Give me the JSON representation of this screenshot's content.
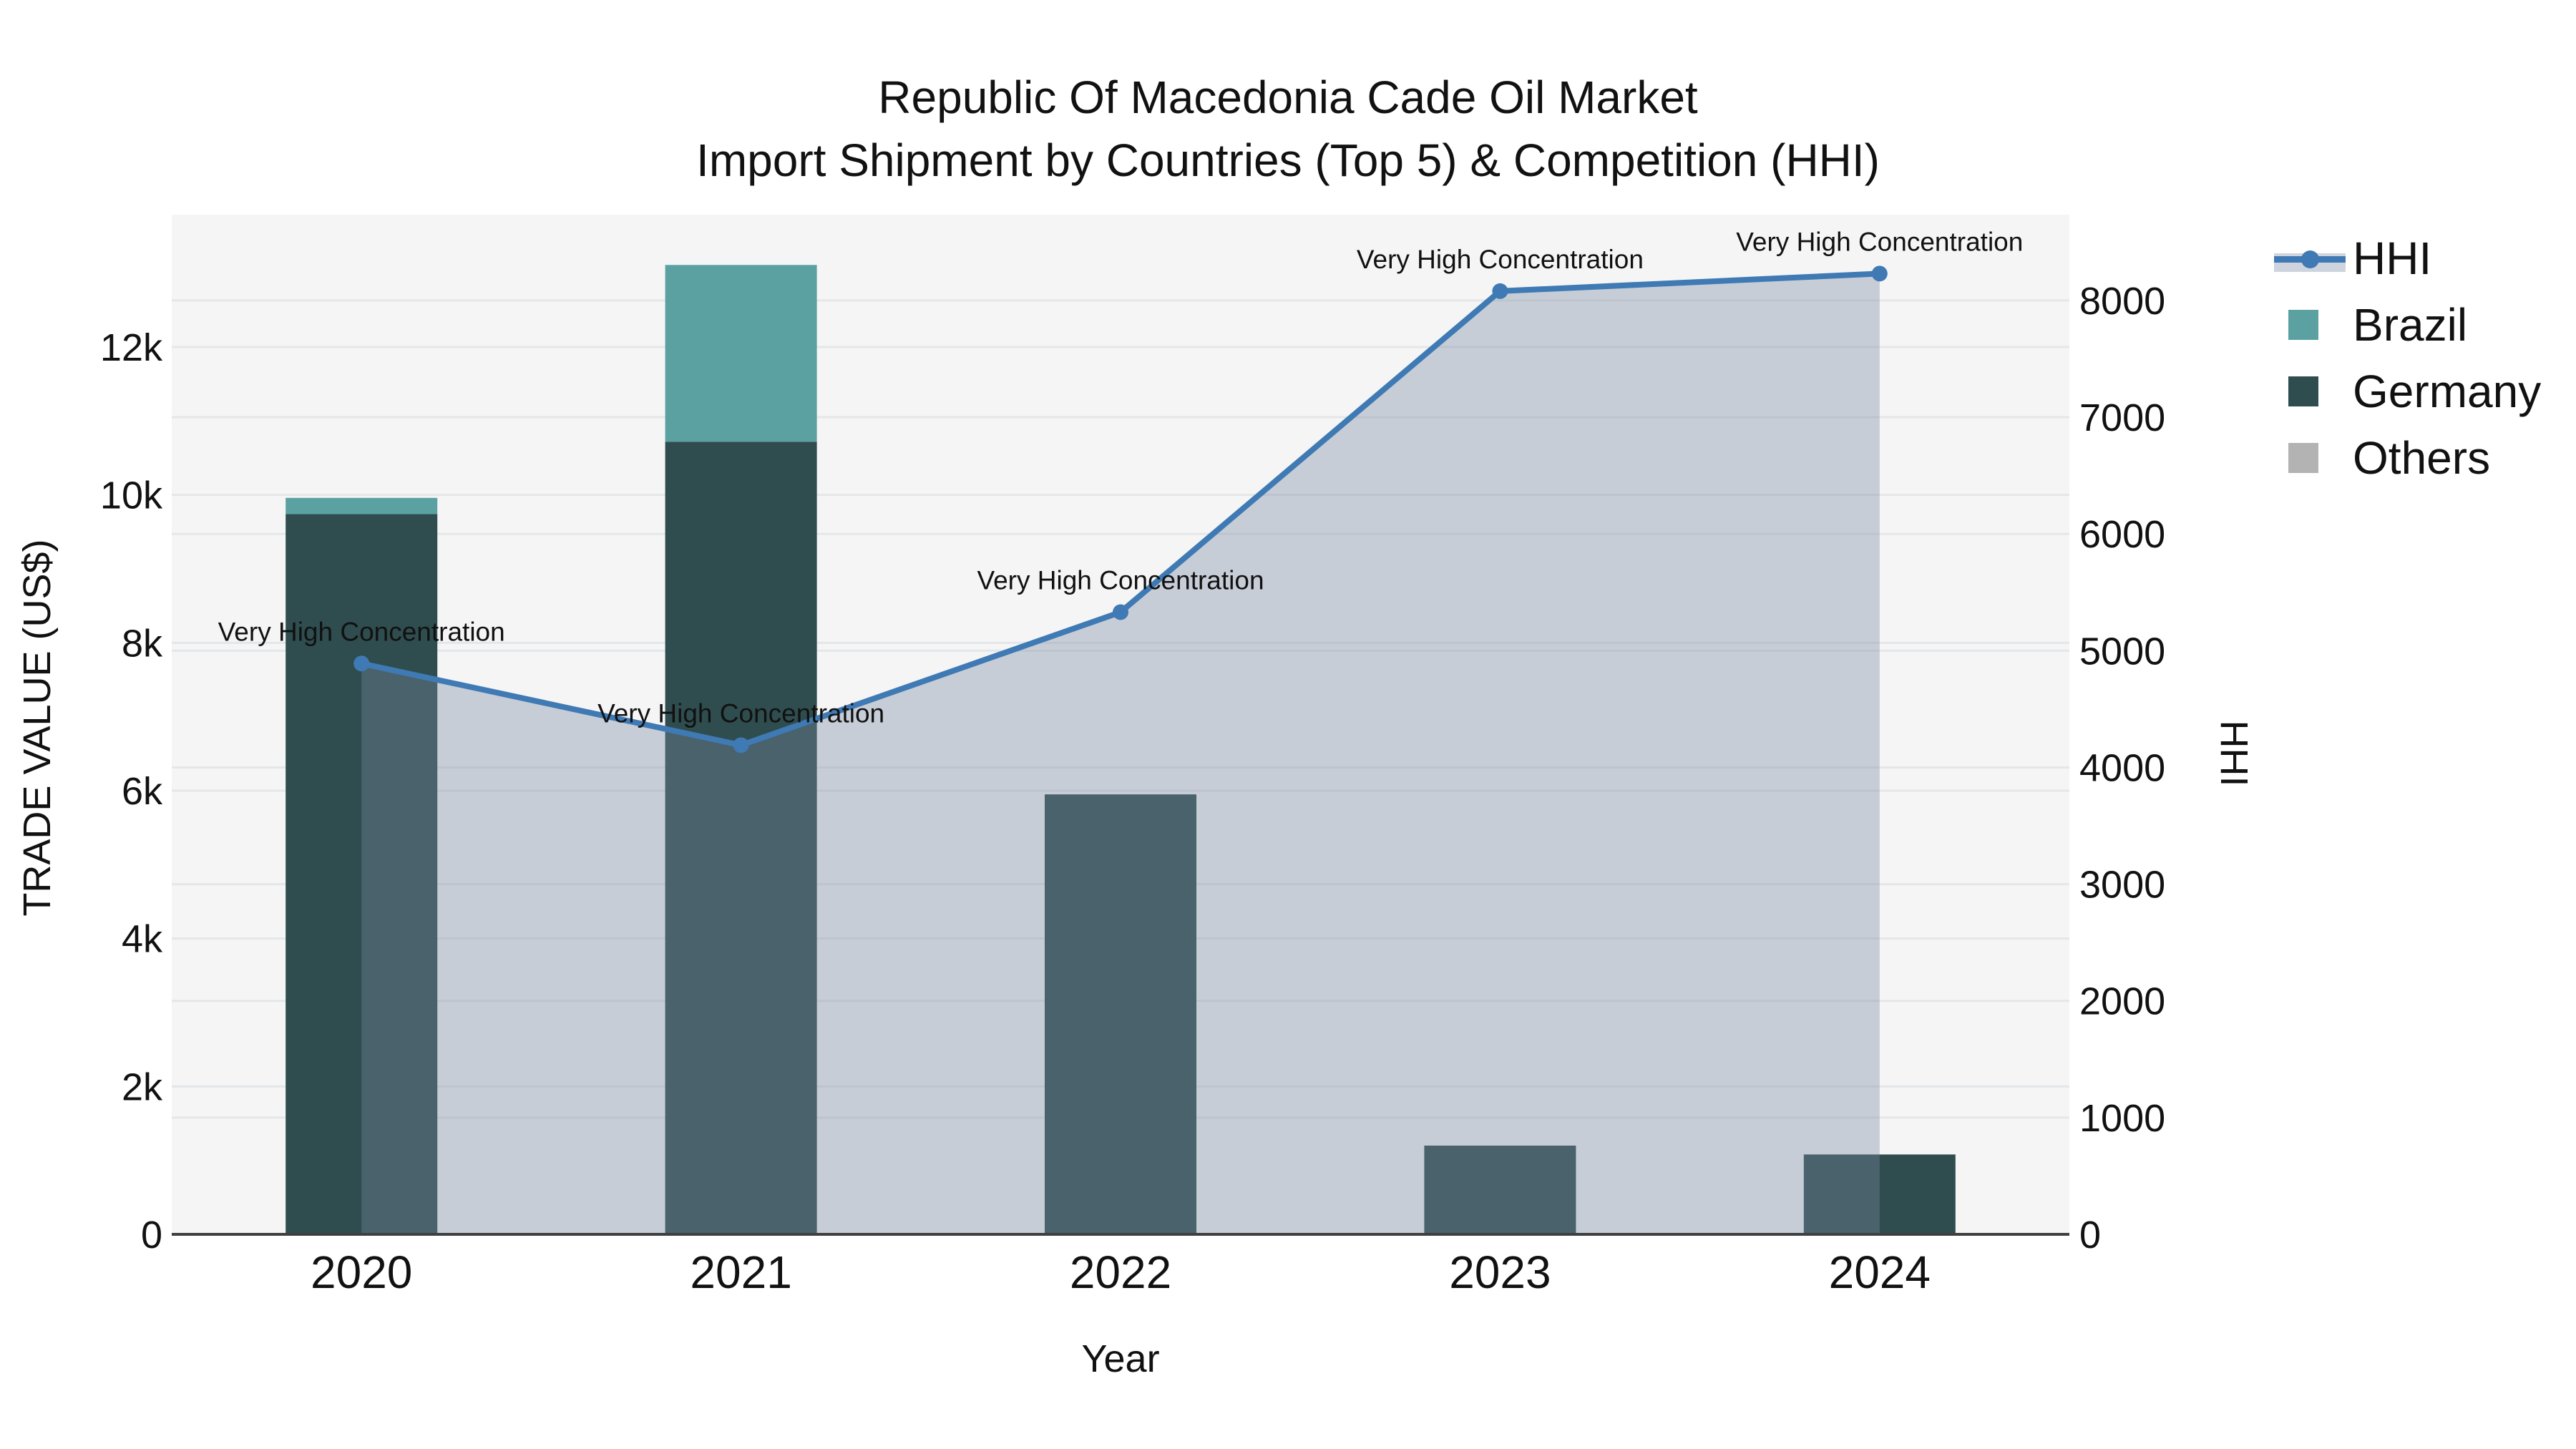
{
  "title": {
    "line1": "Republic Of Macedonia Cade Oil Market",
    "line2": "Import Shipment by Countries (Top 5) & Competition (HHI)"
  },
  "colors": {
    "background": "#ffffff",
    "plot_background": "#f5f5f5",
    "gridline": "#e4e6e9",
    "axis_line": "#3f3f3f",
    "text": "#111111",
    "germany": "#2f4d4f",
    "brazil": "#5ca1a2",
    "others": "#b3b3b3",
    "hhi_line": "#3f7ab4",
    "hhi_fill": "rgba(120,136,160,0.36)"
  },
  "legend": {
    "items": [
      {
        "label": "HHI",
        "type": "line"
      },
      {
        "label": "Brazil",
        "type": "bar"
      },
      {
        "label": "Germany",
        "type": "bar"
      },
      {
        "label": "Others",
        "type": "bar"
      }
    ]
  },
  "chart_data": {
    "type": "bar+line",
    "categories": [
      "2020",
      "2021",
      "2022",
      "2023",
      "2024"
    ],
    "bar_series_bottom_to_top": [
      {
        "name": "Germany",
        "color": "#2f4d4f",
        "values": [
          9740,
          10720,
          5950,
          1200,
          1080
        ]
      },
      {
        "name": "Brazil",
        "color": "#5ca1a2",
        "values": [
          220,
          2390,
          0,
          0,
          0
        ]
      },
      {
        "name": "Others",
        "color": "#b3b3b3",
        "values": [
          0,
          0,
          0,
          0,
          0
        ]
      }
    ],
    "line_series": {
      "name": "HHI",
      "color": "#3f7ab4",
      "fill_color": "rgba(120,136,160,0.36)",
      "values": [
        4890,
        4190,
        5330,
        8080,
        8230
      ]
    },
    "annotations": [
      "Very High Concentration",
      "Very High Concentration",
      "Very High Concentration",
      "Very High Concentration",
      "Very High Concentration"
    ],
    "axes": {
      "x": {
        "title": "Year",
        "tick_labels": [
          "2020",
          "2021",
          "2022",
          "2023",
          "2024"
        ]
      },
      "y_left": {
        "title": "TRADE VALUE (US$)",
        "min": 0,
        "max": 13790,
        "ticks": [
          {
            "value": 0,
            "label": "0"
          },
          {
            "value": 2000,
            "label": "2k"
          },
          {
            "value": 4000,
            "label": "4k"
          },
          {
            "value": 6000,
            "label": "6k"
          },
          {
            "value": 8000,
            "label": "8k"
          },
          {
            "value": 10000,
            "label": "10k"
          },
          {
            "value": 12000,
            "label": "12k"
          }
        ]
      },
      "y_right": {
        "title": "HHI",
        "min": 0,
        "max": 8735,
        "ticks": [
          {
            "value": 0,
            "label": "0"
          },
          {
            "value": 1000,
            "label": "1000"
          },
          {
            "value": 2000,
            "label": "2000"
          },
          {
            "value": 3000,
            "label": "3000"
          },
          {
            "value": 4000,
            "label": "4000"
          },
          {
            "value": 5000,
            "label": "5000"
          },
          {
            "value": 6000,
            "label": "6000"
          },
          {
            "value": 7000,
            "label": "7000"
          },
          {
            "value": 8000,
            "label": "8000"
          }
        ]
      }
    },
    "legend_position": "top-right",
    "grid": true
  }
}
